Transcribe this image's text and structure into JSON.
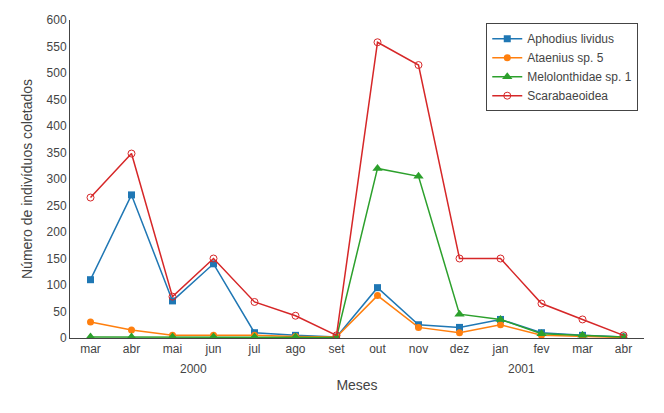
{
  "chart_data": {
    "type": "line",
    "categories": [
      "mar",
      "abr",
      "mai",
      "jun",
      "jul",
      "ago",
      "set",
      "out",
      "nov",
      "dez",
      "jan",
      "fev",
      "mar",
      "abr"
    ],
    "series": [
      {
        "name": "Aphodius lividus",
        "values": [
          110,
          270,
          70,
          140,
          10,
          5,
          2,
          95,
          25,
          20,
          35,
          10,
          5,
          2
        ],
        "marker": "square"
      },
      {
        "name": "Ataenius sp. 5",
        "values": [
          30,
          15,
          5,
          5,
          5,
          3,
          2,
          80,
          20,
          10,
          25,
          5,
          3,
          1
        ],
        "marker": "circle"
      },
      {
        "name": "Melolonthidae sp. 1",
        "values": [
          2,
          2,
          2,
          2,
          2,
          2,
          1,
          320,
          305,
          45,
          35,
          8,
          5,
          2
        ],
        "marker": "triangle-up"
      },
      {
        "name": "Scarabaeoidea",
        "values": [
          265,
          348,
          78,
          150,
          68,
          42,
          5,
          558,
          515,
          150,
          150,
          65,
          35,
          5
        ],
        "marker": "circle-open"
      }
    ],
    "xlabel": "Meses",
    "ylabel": "Número de indivíduos coletados",
    "ylim": [
      0,
      600
    ],
    "yticks": [
      0,
      50,
      100,
      150,
      200,
      250,
      300,
      350,
      400,
      450,
      500,
      550,
      600
    ],
    "grid": false,
    "legend": "upper right",
    "annotations": [
      {
        "text": "2000",
        "x": 2.5
      },
      {
        "text": "2001",
        "x": 10.5
      }
    ]
  }
}
